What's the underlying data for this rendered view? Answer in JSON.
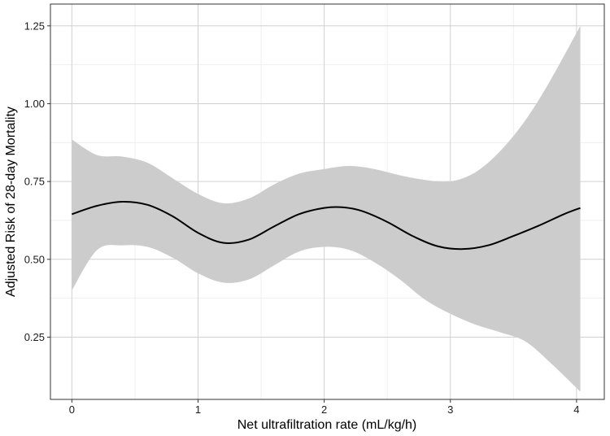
{
  "chart_data": {
    "type": "line",
    "title": "",
    "xlabel": "Net ultrafiltration rate (mL/kg/h)",
    "ylabel": "Adjusted Risk of 28-day Mortality",
    "xlim": [
      -0.17,
      4.22
    ],
    "ylim": [
      0.05,
      1.32
    ],
    "x_ticks": [
      0,
      1,
      2,
      3,
      4
    ],
    "x_tick_labels": [
      "0",
      "1",
      "2",
      "3",
      "4"
    ],
    "y_ticks": [
      0.25,
      0.5,
      0.75,
      1.0,
      1.25
    ],
    "y_tick_labels": [
      "0.25",
      "0.50",
      "0.75",
      "1.00",
      "1.25"
    ],
    "grid": true,
    "series": [
      {
        "type": "line",
        "color": "#000000",
        "x": [
          0,
          0.2,
          0.4,
          0.6,
          0.8,
          1.0,
          1.2,
          1.4,
          1.6,
          1.8,
          2.0,
          2.15,
          2.3,
          2.5,
          2.7,
          2.9,
          3.1,
          3.3,
          3.5,
          3.7,
          3.9,
          4.03
        ],
        "y": [
          0.645,
          0.672,
          0.685,
          0.675,
          0.638,
          0.585,
          0.553,
          0.563,
          0.605,
          0.645,
          0.665,
          0.667,
          0.655,
          0.62,
          0.575,
          0.542,
          0.533,
          0.545,
          0.575,
          0.608,
          0.645,
          0.665
        ]
      },
      {
        "type": "band",
        "color": "#cccccc",
        "x": [
          0,
          0.2,
          0.4,
          0.6,
          0.8,
          1.0,
          1.2,
          1.4,
          1.6,
          1.8,
          2.0,
          2.2,
          2.4,
          2.6,
          2.8,
          3.0,
          3.2,
          3.4,
          3.6,
          3.8,
          4.03
        ],
        "upper": [
          0.885,
          0.835,
          0.83,
          0.81,
          0.76,
          0.71,
          0.68,
          0.695,
          0.74,
          0.775,
          0.79,
          0.8,
          0.79,
          0.77,
          0.755,
          0.75,
          0.78,
          0.85,
          0.95,
          1.08,
          1.25
        ],
        "lower": [
          0.4,
          0.53,
          0.545,
          0.54,
          0.505,
          0.455,
          0.425,
          0.435,
          0.48,
          0.525,
          0.54,
          0.53,
          0.49,
          0.435,
          0.37,
          0.325,
          0.29,
          0.265,
          0.235,
          0.165,
          0.075
        ]
      }
    ]
  }
}
